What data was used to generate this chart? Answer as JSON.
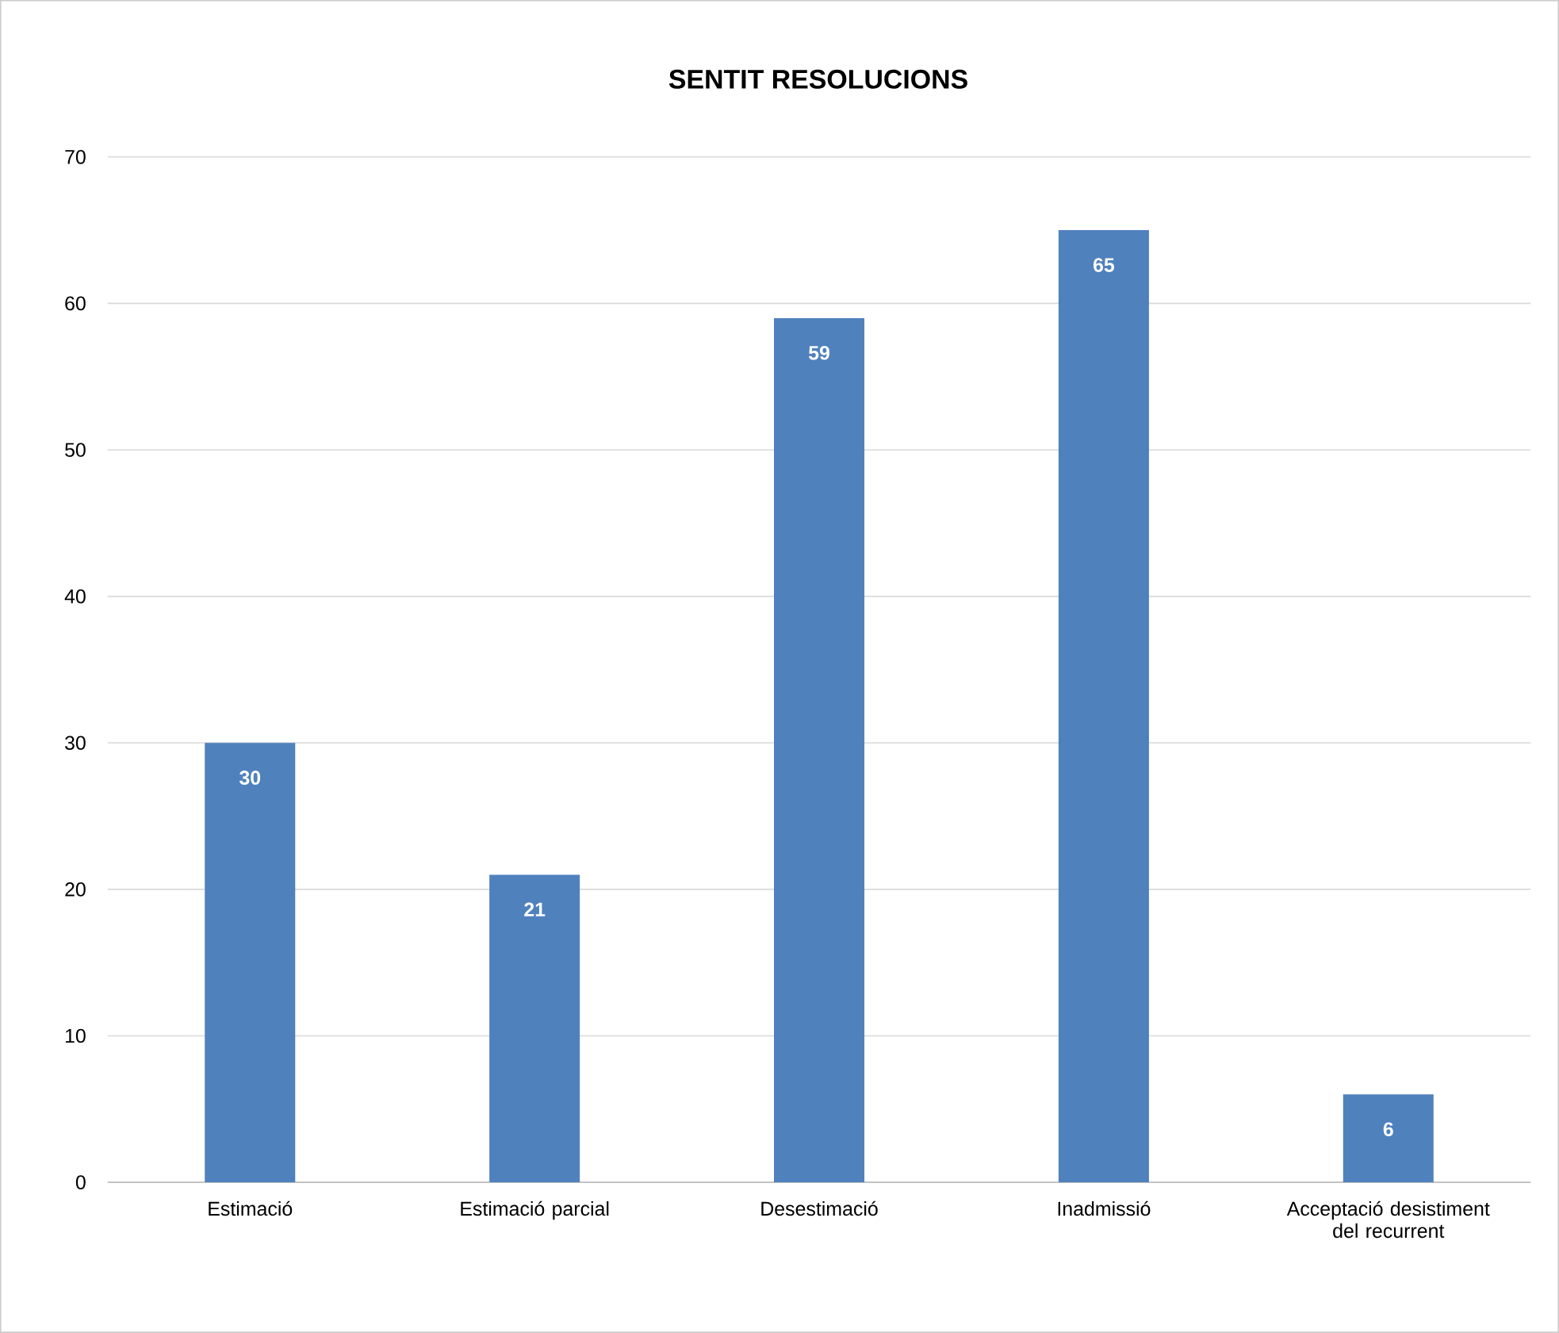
{
  "chart_data": {
    "type": "bar",
    "title": "SENTIT RESOLUCIONS",
    "categories": [
      "Estimació",
      "Estimació parcial",
      "Desestimació",
      "Inadmissió",
      "Acceptació desistiment del recurrent"
    ],
    "values": [
      30,
      21,
      59,
      65,
      6
    ],
    "color": "#4f81bd",
    "ylim": [
      0,
      70
    ],
    "yticks": [
      0,
      10,
      20,
      30,
      40,
      50,
      60,
      70
    ],
    "grid": "y",
    "data_labels": true
  }
}
